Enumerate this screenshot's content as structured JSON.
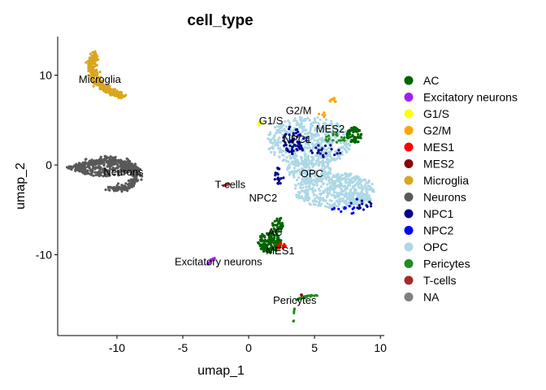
{
  "chart_data": {
    "type": "scatter",
    "title": "cell_type",
    "xlabel": "umap_1",
    "ylabel": "umap_2",
    "xlim": [
      -14.5,
      10.3
    ],
    "ylim": [
      -19,
      14.3
    ],
    "xticks": [
      -10,
      -5,
      0,
      5,
      10
    ],
    "yticks": [
      -10,
      0,
      10
    ],
    "xtick_labels": [
      "-10",
      "-5",
      "0",
      "5",
      "10"
    ],
    "ytick_labels": [
      "-10",
      "0",
      "10"
    ],
    "grid": false,
    "legend_position": "right",
    "legend": [
      {
        "name": "AC",
        "color": "#006400"
      },
      {
        "name": "Excitatory neurons",
        "color": "#A020F0"
      },
      {
        "name": "G1/S",
        "color": "#FFFF00"
      },
      {
        "name": "G2/M",
        "color": "#FFA500"
      },
      {
        "name": "MES1",
        "color": "#FF0000"
      },
      {
        "name": "MES2",
        "color": "#8B0000"
      },
      {
        "name": "Microglia",
        "color": "#DAA520"
      },
      {
        "name": "Neurons",
        "color": "#595959"
      },
      {
        "name": "NPC1",
        "color": "#00008B"
      },
      {
        "name": "NPC2",
        "color": "#0000FF"
      },
      {
        "name": "OPC",
        "color": "#ADD8E6"
      },
      {
        "name": "Pericytes",
        "color": "#228B22"
      },
      {
        "name": "T-cells",
        "color": "#A52A2A"
      },
      {
        "name": "NA",
        "color": "#808080"
      }
    ],
    "cluster_labels": [
      {
        "text": "Microglia",
        "x": -11.3,
        "y": 9.5
      },
      {
        "text": "Neurons",
        "x": -9.5,
        "y": -0.8
      },
      {
        "text": "T-cells",
        "x": -1.4,
        "y": -2.2
      },
      {
        "text": "Excitatory neurons",
        "x": -2.3,
        "y": -10.8
      },
      {
        "text": "G2/M",
        "x": 3.8,
        "y": 6.0
      },
      {
        "text": "G1/S",
        "x": 1.7,
        "y": 4.9
      },
      {
        "text": "MES2",
        "x": 6.2,
        "y": 4.0
      },
      {
        "text": "NPC1",
        "x": 3.7,
        "y": 2.8
      },
      {
        "text": "OPC",
        "x": 4.8,
        "y": -1.0
      },
      {
        "text": "NPC2",
        "x": 1.1,
        "y": -3.7
      },
      {
        "text": "AC",
        "x": 2.0,
        "y": -7.5
      },
      {
        "text": "MES1",
        "x": 2.4,
        "y": -9.6
      },
      {
        "text": "Pericytes",
        "x": 3.5,
        "y": -15.1
      }
    ],
    "clusters": [
      {
        "type": "Microglia",
        "shape": "arc",
        "points": [
          [
            -11.6,
            12.4
          ],
          [
            -12.0,
            11.0
          ],
          [
            -11.6,
            9.3
          ],
          [
            -10.7,
            8.3
          ],
          [
            -9.6,
            7.7
          ]
        ],
        "halfwidth": 0.55,
        "count": 320
      },
      {
        "type": "Neurons",
        "shape": "arc",
        "points": [
          [
            -13.4,
            -0.4
          ],
          [
            -12.0,
            0.3
          ],
          [
            -10.5,
            0.6
          ],
          [
            -9.0,
            0.1
          ],
          [
            -8.4,
            -1.3
          ],
          [
            -9.3,
            -2.5
          ],
          [
            -10.6,
            -2.6
          ]
        ],
        "halfwidth": 0.55,
        "count": 380
      },
      {
        "type": "Neurons",
        "shape": "ellipse",
        "cx": -10.7,
        "cy": -0.5,
        "rx": 2.4,
        "ry": 0.8,
        "count": 200
      },
      {
        "type": "OPC",
        "shape": "ellipse",
        "cx": 4.6,
        "cy": 2.6,
        "rx": 3.2,
        "ry": 2.8,
        "count": 520
      },
      {
        "type": "OPC",
        "shape": "ellipse",
        "cx": 6.5,
        "cy": -2.8,
        "rx": 3.1,
        "ry": 2.0,
        "count": 460
      },
      {
        "type": "OPC",
        "shape": "ellipse",
        "cx": 4.6,
        "cy": -0.5,
        "rx": 1.7,
        "ry": 1.5,
        "count": 160
      },
      {
        "type": "OPC",
        "shape": "ellipse",
        "cx": 8.3,
        "cy": -3.8,
        "rx": 1.0,
        "ry": 0.8,
        "count": 60
      },
      {
        "type": "AC",
        "shape": "ellipse",
        "cx": 8.0,
        "cy": 3.3,
        "rx": 0.55,
        "ry": 0.9,
        "count": 70
      },
      {
        "type": "AC",
        "shape": "ellipse",
        "cx": 1.6,
        "cy": -8.6,
        "rx": 0.9,
        "ry": 1.2,
        "count": 160
      },
      {
        "type": "AC",
        "shape": "ellipse",
        "cx": 2.2,
        "cy": -6.7,
        "rx": 0.4,
        "ry": 1.0,
        "count": 40
      },
      {
        "type": "NPC1",
        "shape": "ellipse",
        "cx": 3.5,
        "cy": 2.8,
        "rx": 0.9,
        "ry": 1.6,
        "count": 60
      },
      {
        "type": "NPC1",
        "shape": "ellipse",
        "cx": 2.3,
        "cy": -1.2,
        "rx": 0.4,
        "ry": 0.9,
        "count": 18
      },
      {
        "type": "NPC1",
        "shape": "ellipse",
        "cx": 5.8,
        "cy": 1.5,
        "rx": 1.2,
        "ry": 0.8,
        "count": 20
      },
      {
        "type": "NPC1",
        "shape": "ellipse",
        "cx": 8.6,
        "cy": -4.3,
        "rx": 0.9,
        "ry": 0.6,
        "count": 14
      },
      {
        "type": "NPC2",
        "shape": "ellipse",
        "cx": 7.5,
        "cy": -5.0,
        "rx": 1.3,
        "ry": 0.5,
        "count": 14
      },
      {
        "type": "Pericytes",
        "shape": "arc",
        "points": [
          [
            3.7,
            -15.0
          ],
          [
            4.4,
            -14.6
          ],
          [
            5.2,
            -14.5
          ]
        ],
        "halfwidth": 0.15,
        "count": 30
      },
      {
        "type": "Pericytes",
        "shape": "arc",
        "points": [
          [
            3.5,
            -16.0
          ],
          [
            3.4,
            -17.5
          ]
        ],
        "halfwidth": 0.1,
        "count": 6
      },
      {
        "type": "Pericytes",
        "shape": "ellipse",
        "cx": 6.6,
        "cy": 3.0,
        "rx": 0.9,
        "ry": 0.5,
        "count": 20
      },
      {
        "type": "Excitatory neurons",
        "shape": "arc",
        "points": [
          [
            -3.2,
            -11.1
          ],
          [
            -2.6,
            -10.4
          ]
        ],
        "halfwidth": 0.12,
        "count": 18
      },
      {
        "type": "G2/M",
        "shape": "ellipse",
        "cx": 6.4,
        "cy": 7.2,
        "rx": 0.25,
        "ry": 0.25,
        "count": 8
      },
      {
        "type": "G2/M",
        "shape": "ellipse",
        "cx": 5.6,
        "cy": 5.6,
        "rx": 0.3,
        "ry": 0.3,
        "count": 5
      },
      {
        "type": "G1/S",
        "shape": "ellipse",
        "cx": 0.9,
        "cy": 4.6,
        "rx": 0.2,
        "ry": 0.3,
        "count": 6
      },
      {
        "type": "MES1",
        "shape": "ellipse",
        "cx": 2.5,
        "cy": -9.1,
        "rx": 0.3,
        "ry": 0.4,
        "count": 10
      },
      {
        "type": "MES2",
        "shape": "ellipse",
        "cx": 4.0,
        "cy": -14.4,
        "rx": 0.1,
        "ry": 0.15,
        "count": 3
      },
      {
        "type": "T-cells",
        "shape": "arc",
        "points": [
          [
            -1.9,
            -2.3
          ],
          [
            -1.5,
            -2.1
          ]
        ],
        "halfwidth": 0.08,
        "count": 6
      }
    ]
  }
}
